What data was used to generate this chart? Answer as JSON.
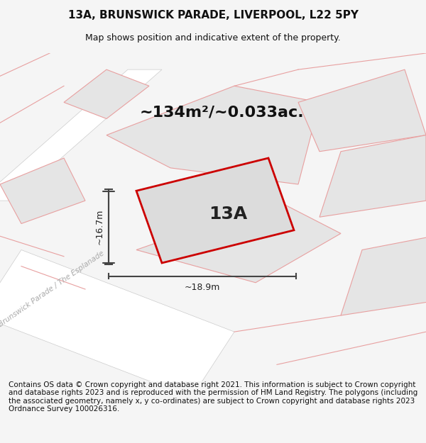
{
  "title": "13A, BRUNSWICK PARADE, LIVERPOOL, L22 5PY",
  "subtitle": "Map shows position and indicative extent of the property.",
  "area_text": "~134m²/~0.033ac.",
  "label_13a": "13A",
  "dim_height": "~16.7m",
  "dim_width": "~18.9m",
  "street_label": "Brunswick Parade / The Esplanade",
  "footer": "Contains OS data © Crown copyright and database right 2021. This information is subject to Crown copyright and database rights 2023 and is reproduced with the permission of HM Land Registry. The polygons (including the associated geometry, namely x, y co-ordinates) are subject to Crown copyright and database rights 2023 Ordnance Survey 100026316.",
  "bg_color": "#f5f5f5",
  "map_bg": "#f0f0f0",
  "road_color": "#ffffff",
  "building_fill": "#e0e0e0",
  "property_fill": "#d8d8d8",
  "red_line_color": "#cc0000",
  "pink_line_color": "#e8a0a0",
  "dim_line_color": "#444444",
  "title_fontsize": 11,
  "subtitle_fontsize": 9,
  "area_fontsize": 16,
  "label_fontsize": 18,
  "footer_fontsize": 7.5
}
